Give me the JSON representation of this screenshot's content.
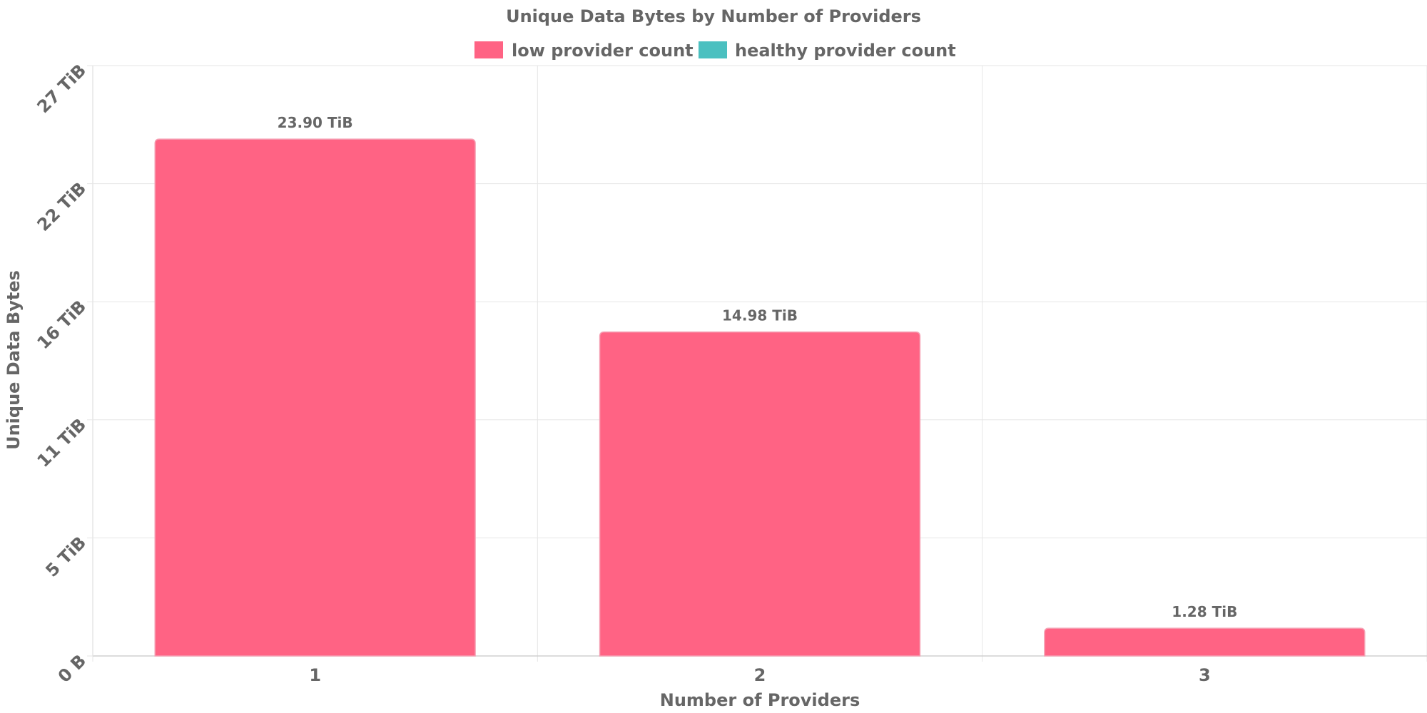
{
  "chart_data": {
    "type": "bar",
    "title": "Unique Data Bytes by Number of Providers",
    "xlabel": "Number of Providers",
    "ylabel": "Unique Data Bytes",
    "categories": [
      "1",
      "2",
      "3"
    ],
    "series": [
      {
        "name": "low provider count",
        "color": "#ff6384",
        "values": [
          23.9,
          14.98,
          1.28
        ],
        "value_labels": [
          "23.90 TiB",
          "14.98 TiB",
          "1.28 TiB"
        ]
      },
      {
        "name": "healthy provider count",
        "color": "#4bc0c0",
        "values": [
          0,
          0,
          0
        ]
      }
    ],
    "unit": "TiB",
    "ylim": [
      0,
      27.3
    ],
    "yticks": [
      {
        "value": 0,
        "label": "0 B"
      },
      {
        "value": 5.46,
        "label": "5 TiB"
      },
      {
        "value": 10.92,
        "label": "11 TiB"
      },
      {
        "value": 16.38,
        "label": "16 TiB"
      },
      {
        "value": 21.84,
        "label": "22 TiB"
      },
      {
        "value": 27.3,
        "label": "27 TiB"
      }
    ],
    "grid": true,
    "legend_position": "top-center"
  }
}
